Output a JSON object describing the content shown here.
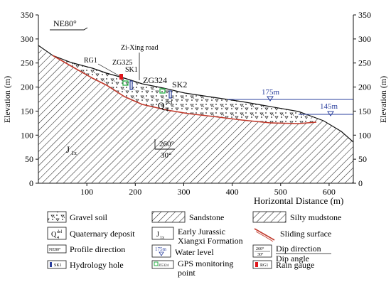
{
  "axes": {
    "y_label_left": "Elevation (m)",
    "y_label_right": "Elevation (m)",
    "x_label": "Horizontal Distance (m)",
    "y_ticks": [
      "0",
      "50",
      "100",
      "150",
      "200",
      "250",
      "300",
      "350"
    ],
    "x_ticks": [
      "100",
      "200",
      "300",
      "400",
      "500",
      "600"
    ]
  },
  "labels": {
    "ne": "NE80°",
    "road": "Zi-Xing road",
    "rg1": "RG1",
    "zg325": "ZG325",
    "sk1": "SK1",
    "zg324": "ZG324",
    "sk2": "SK2",
    "q_base": "Q",
    "q_sup": "del",
    "q_sub": "4",
    "j_base": "J",
    "j_sub": "1x",
    "wl1": "175m",
    "wl2": "145m",
    "dip_dir": "260°",
    "dip_angle": "30°"
  },
  "legend": {
    "gravel": "Gravel soil",
    "sandstone": "Sandstone",
    "silty": "Silty mudstone",
    "quaternary": "Quaternary deposit",
    "jurassic_1": "Early Jurassic",
    "jurassic_2": "Xiangxi Formation",
    "sliding": "Sliding surface",
    "profile": "Profile direction",
    "water": "Water level",
    "dip_1": "Dip direction",
    "dip_2": "Dip angle",
    "hydro": "Hydrology hole",
    "gps_1": "GPS monitoring",
    "gps_2": "point",
    "rain": "Rain gauge",
    "icon_ne": "NE80°",
    "icon_wl": "175m",
    "icon_dip_top": "260°",
    "icon_dip_bot": "30°",
    "icon_sk": "SK1",
    "icon_zg": "ZG324",
    "icon_rg": "RG1",
    "icon_q_sup": "del",
    "icon_q_sub": "4",
    "icon_j_sub": "1x"
  },
  "colors": {
    "sliding_surface": "#c0392b",
    "water": "#2a3f9d",
    "gps": "#2bb34a",
    "rain": "#e0161b",
    "hole": "#2a3f9d"
  }
}
